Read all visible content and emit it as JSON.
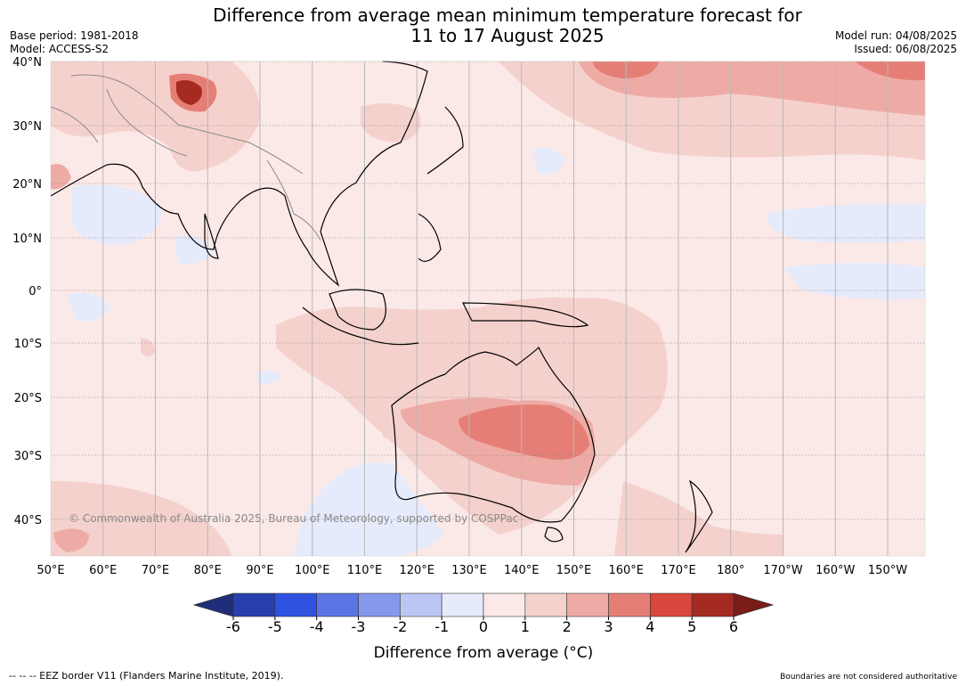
{
  "header": {
    "title_line1": "Difference from average mean minimum temperature forecast for",
    "title_line2": "11 to 17 August 2025",
    "base_period": "Base period: 1981-2018",
    "model": "Model: ACCESS-S2",
    "model_run": "Model run: 04/08/2025",
    "issued": "Issued: 06/08/2025"
  },
  "map": {
    "copyright": "© Commonwealth of Australia 2025, Bureau of Meteorology, supported by COSPPac",
    "lat_labels": [
      "40°N",
      "30°N",
      "20°N",
      "10°N",
      "0°",
      "10°S",
      "20°S",
      "30°S",
      "40°S"
    ],
    "lon_labels": [
      "50°E",
      "60°E",
      "70°E",
      "80°E",
      "90°E",
      "100°E",
      "110°E",
      "120°E",
      "130°E",
      "140°E",
      "150°E",
      "160°E",
      "170°E",
      "180°",
      "170°W",
      "160°W",
      "150°W"
    ]
  },
  "colorbar": {
    "ticks": [
      "-6",
      "-5",
      "-4",
      "-3",
      "-2",
      "-1",
      "0",
      "1",
      "2",
      "3",
      "4",
      "5",
      "6"
    ],
    "label": "Difference from average (°C)",
    "colors": [
      "#263fad",
      "#2f53e0",
      "#5b74e4",
      "#8598ec",
      "#bcc6f4",
      "#e6ebfb",
      "#fbe9e7",
      "#f5d1cd",
      "#eeaba6",
      "#e57f76",
      "#d9473d",
      "#a52a22"
    ],
    "under_color": "#1f2d7a",
    "over_color": "#7a1c17"
  },
  "footer": {
    "eez_note": "--  --  -- EEZ border V11 (Flanders Marine Institute, 2019).",
    "boundaries_note": "Boundaries are not considered authoritative"
  }
}
